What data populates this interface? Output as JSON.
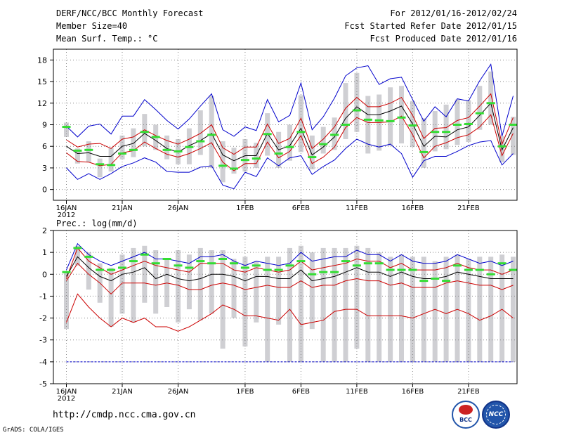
{
  "header": {
    "title": "DERF/NCC/BCC Monthly Forecast",
    "member_size": "Member Size=40",
    "variable": "Mean Surf. Temp.: °C",
    "forecast_period": "For 2012/01/16-2012/02/24",
    "started_date": "Fcst Started Refer Date 2012/01/15",
    "produced_date": "Fcst Produced Date 2012/01/16"
  },
  "footer": {
    "url": "http://cmdp.ncc.cma.gov.cn",
    "credit": "GrADS: COLA/IGES",
    "logo_left": "BCC",
    "logo_right": "NCC"
  },
  "colors": {
    "max_min": "#0000cc",
    "spread": "#cc0000",
    "mean": "#000000",
    "box": "#cfcfd3",
    "obs": "#33dd33",
    "grid": "#888888"
  },
  "chart_data": [
    {
      "name": "temperature",
      "type": "line",
      "title": "Mean Surf. Temp.: °C",
      "ylim": [
        -1.5,
        19.5
      ],
      "yticks": [
        0,
        3,
        6,
        9,
        12,
        15,
        18
      ],
      "xticks": [
        {
          "day": 0,
          "label": "16JAN",
          "sub": "2012"
        },
        {
          "day": 5,
          "label": "21JAN"
        },
        {
          "day": 10,
          "label": "26JAN"
        },
        {
          "day": 16,
          "label": "1FEB"
        },
        {
          "day": 21,
          "label": "6FEB"
        },
        {
          "day": 26,
          "label": "11FEB"
        },
        {
          "day": 31,
          "label": "16FEB"
        },
        {
          "day": 36,
          "label": "21FEB"
        }
      ],
      "series": [
        {
          "name": "max",
          "role": "max",
          "values": [
            8.8,
            7.3,
            8.8,
            9.1,
            7.7,
            10.2,
            10.2,
            12.5,
            11.1,
            9.6,
            8.4,
            9.8,
            11.6,
            13.3,
            8.3,
            7.4,
            8.7,
            8.2,
            12.5,
            9.4,
            10.3,
            14.8,
            8.3,
            10.1,
            12.7,
            15.8,
            16.9,
            17.2,
            14.6,
            15.4,
            15.6,
            12.5,
            9.5,
            11.5,
            10.1,
            12.6,
            12.3,
            15.1,
            17.4,
            7.4,
            13.0
          ]
        },
        {
          "name": "upper",
          "role": "spread",
          "values": [
            6.9,
            5.9,
            6.3,
            6.4,
            5.7,
            7.0,
            7.3,
            8.3,
            7.5,
            6.8,
            6.3,
            7.0,
            7.8,
            9.0,
            5.8,
            4.9,
            5.9,
            5.9,
            9.1,
            6.4,
            7.1,
            9.9,
            5.7,
            7.0,
            8.7,
            11.3,
            12.8,
            11.5,
            11.5,
            12.0,
            12.8,
            10.3,
            7.1,
            8.5,
            8.6,
            9.6,
            10.0,
            11.6,
            13.3,
            6.3,
            10.0
          ]
        },
        {
          "name": "mean",
          "role": "mean",
          "values": [
            6.0,
            5.0,
            5.1,
            4.6,
            4.6,
            6.0,
            6.4,
            7.8,
            6.8,
            5.7,
            5.2,
            6.1,
            6.8,
            7.8,
            4.8,
            4.0,
            4.7,
            4.7,
            7.8,
            5.5,
            6.1,
            8.5,
            4.8,
            5.9,
            7.3,
            9.9,
            11.5,
            10.4,
            10.4,
            10.9,
            11.6,
            9.1,
            6.0,
            7.4,
            7.3,
            8.3,
            8.7,
            10.3,
            12.0,
            5.5,
            8.6
          ]
        },
        {
          "name": "lower",
          "role": "spread",
          "values": [
            5.1,
            3.9,
            3.8,
            3.3,
            3.5,
            5.1,
            5.4,
            6.6,
            5.7,
            4.9,
            4.5,
            5.0,
            5.7,
            6.5,
            3.8,
            2.6,
            3.6,
            3.6,
            6.6,
            4.4,
            5.3,
            7.5,
            3.6,
            4.5,
            5.9,
            8.6,
            10.0,
            9.3,
            9.3,
            9.4,
            10.2,
            7.6,
            4.4,
            6.0,
            6.5,
            7.2,
            7.6,
            8.7,
            10.4,
            4.7,
            7.8
          ]
        },
        {
          "name": "min",
          "role": "min",
          "values": [
            3.0,
            1.4,
            2.2,
            1.4,
            2.2,
            3.2,
            3.7,
            4.4,
            3.8,
            2.5,
            2.4,
            2.4,
            3.1,
            3.3,
            0.6,
            0.1,
            2.4,
            1.8,
            4.4,
            3.3,
            4.4,
            4.7,
            2.1,
            3.2,
            4.1,
            5.7,
            7.0,
            6.3,
            5.9,
            6.3,
            5.0,
            1.7,
            4.0,
            4.6,
            4.6,
            5.3,
            6.1,
            6.6,
            6.8,
            3.4,
            5.0
          ]
        }
      ],
      "boxes": [
        {
          "lo": 7.3,
          "hi": 9.3
        },
        {
          "lo": 3.6,
          "hi": 5.7
        },
        {
          "lo": 3.8,
          "hi": 6.7
        },
        {
          "lo": 1.7,
          "hi": 4.3
        },
        {
          "lo": 2.5,
          "hi": 5.8
        },
        {
          "lo": 4.2,
          "hi": 7.5
        },
        {
          "lo": 4.5,
          "hi": 8.5
        },
        {
          "lo": 6.0,
          "hi": 10.5
        },
        {
          "lo": 5.5,
          "hi": 9.0
        },
        {
          "lo": 4.2,
          "hi": 7.5
        },
        {
          "lo": 3.5,
          "hi": 7.0
        },
        {
          "lo": 3.5,
          "hi": 8.5
        },
        {
          "lo": 4.8,
          "hi": 11.0
        },
        {
          "lo": 3.0,
          "hi": 13.0
        },
        {
          "lo": 1.0,
          "hi": 6.7
        },
        {
          "lo": 2.2,
          "hi": 5.8
        },
        {
          "lo": 2.5,
          "hi": 7.0
        },
        {
          "lo": 3.0,
          "hi": 6.5
        },
        {
          "lo": 4.7,
          "hi": 10.6
        },
        {
          "lo": 3.0,
          "hi": 8.0
        },
        {
          "lo": 4.0,
          "hi": 9.0
        },
        {
          "lo": 5.2,
          "hi": 13.1
        },
        {
          "lo": 2.8,
          "hi": 7.5
        },
        {
          "lo": 5.0,
          "hi": 8.7
        },
        {
          "lo": 5.5,
          "hi": 10.0
        },
        {
          "lo": 7.0,
          "hi": 14.8
        },
        {
          "lo": 8.0,
          "hi": 16.2
        },
        {
          "lo": 5.0,
          "hi": 13.0
        },
        {
          "lo": 5.4,
          "hi": 13.2
        },
        {
          "lo": 6.1,
          "hi": 14.2
        },
        {
          "lo": 6.4,
          "hi": 14.4
        },
        {
          "lo": 5.9,
          "hi": 12.3
        },
        {
          "lo": 3.0,
          "hi": 9.9
        },
        {
          "lo": 5.3,
          "hi": 10.9
        },
        {
          "lo": 5.6,
          "hi": 11.8
        },
        {
          "lo": 6.2,
          "hi": 12.5
        },
        {
          "lo": 6.6,
          "hi": 12.4
        },
        {
          "lo": 8.3,
          "hi": 14.4
        },
        {
          "lo": 9.0,
          "hi": 16.4
        },
        {
          "lo": 3.8,
          "hi": 7.4
        },
        {
          "lo": 4.8,
          "hi": 10.1
        }
      ],
      "obs": [
        8.7,
        5.4,
        5.5,
        3.5,
        3.4,
        5.0,
        5.5,
        8.0,
        7.3,
        5.5,
        5.3,
        5.9,
        6.7,
        7.6,
        3.3,
        2.9,
        4.1,
        4.3,
        7.7,
        5.0,
        5.9,
        8.0,
        4.5,
        6.3,
        7.6,
        9.0,
        11.0,
        9.7,
        9.6,
        9.5,
        10.0,
        8.9,
        5.2,
        8.0,
        8.0,
        9.0,
        9.1,
        10.6,
        12.0,
        6.0,
        9.0
      ]
    },
    {
      "name": "precipitation",
      "type": "line",
      "title": "Prec.: log(mm/d)",
      "ylim": [
        -5,
        2
      ],
      "yticks": [
        -5,
        -4,
        -3,
        -2,
        -1,
        0,
        1,
        2
      ],
      "xticks": [
        {
          "day": 0,
          "label": "16JAN",
          "sub": "2012"
        },
        {
          "day": 5,
          "label": "21JAN"
        },
        {
          "day": 10,
          "label": "26JAN"
        },
        {
          "day": 16,
          "label": "1FEB"
        },
        {
          "day": 21,
          "label": "6FEB"
        },
        {
          "day": 26,
          "label": "11FEB"
        },
        {
          "day": 31,
          "label": "16FEB"
        },
        {
          "day": 36,
          "label": "21FEB"
        }
      ],
      "series": [
        {
          "name": "max",
          "role": "max",
          "values": [
            0.2,
            1.4,
            0.9,
            0.6,
            0.4,
            0.6,
            0.8,
            1.0,
            0.7,
            0.7,
            0.6,
            0.5,
            0.8,
            0.8,
            0.9,
            0.6,
            0.4,
            0.6,
            0.5,
            0.4,
            0.5,
            1.0,
            0.6,
            0.7,
            0.8,
            0.8,
            1.1,
            0.9,
            0.9,
            0.6,
            0.9,
            0.6,
            0.5,
            0.5,
            0.6,
            0.9,
            0.7,
            0.5,
            0.6,
            0.4,
            0.6
          ]
        },
        {
          "name": "upper",
          "role": "spread",
          "values": [
            -0.2,
            1.2,
            0.6,
            0.3,
            0.0,
            0.2,
            0.4,
            0.6,
            0.4,
            0.3,
            0.2,
            0.1,
            0.5,
            0.5,
            0.5,
            0.2,
            0.1,
            0.3,
            0.2,
            0.1,
            0.2,
            0.6,
            0.2,
            0.3,
            0.4,
            0.5,
            0.7,
            0.6,
            0.6,
            0.3,
            0.5,
            0.2,
            0.2,
            0.2,
            0.3,
            0.5,
            0.3,
            0.2,
            0.2,
            0.0,
            0.2
          ]
        },
        {
          "name": "mean",
          "role": "mean",
          "values": [
            -0.1,
            0.8,
            0.3,
            -0.1,
            -0.3,
            0.0,
            0.1,
            0.3,
            -0.2,
            0.0,
            -0.2,
            -0.3,
            -0.2,
            0.0,
            0.0,
            -0.1,
            -0.3,
            -0.1,
            -0.1,
            -0.2,
            -0.2,
            0.2,
            -0.3,
            -0.2,
            -0.1,
            0.1,
            0.3,
            0.1,
            0.1,
            -0.1,
            0.1,
            -0.1,
            -0.2,
            -0.2,
            -0.1,
            0.1,
            0.0,
            -0.1,
            -0.2,
            -0.2,
            -0.2
          ]
        },
        {
          "name": "lower",
          "role": "spread",
          "values": [
            -0.3,
            0.5,
            0.0,
            -0.4,
            -0.9,
            -0.4,
            -0.4,
            -0.4,
            -0.5,
            -0.4,
            -0.5,
            -0.7,
            -0.7,
            -0.5,
            -0.4,
            -0.5,
            -0.7,
            -0.6,
            -0.5,
            -0.6,
            -0.6,
            -0.3,
            -0.6,
            -0.5,
            -0.5,
            -0.3,
            -0.2,
            -0.3,
            -0.3,
            -0.5,
            -0.4,
            -0.6,
            -0.6,
            -0.6,
            -0.4,
            -0.3,
            -0.4,
            -0.5,
            -0.5,
            -0.7,
            -0.5
          ]
        },
        {
          "name": "bottom",
          "role": "spread",
          "values": [
            -2.2,
            -0.9,
            -1.5,
            -2.0,
            -2.4,
            -2.0,
            -2.2,
            -2.0,
            -2.4,
            -2.4,
            -2.6,
            -2.4,
            -2.1,
            -1.8,
            -1.4,
            -1.6,
            -1.9,
            -1.9,
            -2.0,
            -2.1,
            -1.6,
            -2.3,
            -2.2,
            -2.1,
            -1.7,
            -1.6,
            -1.6,
            -1.9,
            -1.9,
            -1.9,
            -1.9,
            -2.0,
            -1.8,
            -1.6,
            -1.8,
            -1.6,
            -1.8,
            -2.1,
            -1.9,
            -1.6,
            -2.0
          ]
        },
        {
          "name": "floor",
          "role": "min",
          "values": [
            -4,
            -4,
            -4,
            -4,
            -4,
            -4,
            -4,
            -4,
            -4,
            -4,
            -4,
            -4,
            -4,
            -4,
            -4,
            -4,
            -4,
            -4,
            -4,
            -4,
            -4,
            -4,
            -4,
            -4,
            -4,
            -4,
            -4,
            -4,
            -4,
            -4,
            -4,
            -4,
            -4,
            -4,
            -4,
            -4,
            -4,
            -4,
            -4,
            -4,
            -4
          ]
        }
      ],
      "boxes": [
        {
          "lo": -2.5,
          "hi": 0.1
        },
        {
          "lo": 0.4,
          "hi": 1.3
        },
        {
          "lo": -0.7,
          "hi": 1.0
        },
        {
          "lo": -1.3,
          "hi": 0.5
        },
        {
          "lo": -2.4,
          "hi": 0.3
        },
        {
          "lo": -1.8,
          "hi": 0.9
        },
        {
          "lo": -2.2,
          "hi": 1.2
        },
        {
          "lo": -1.3,
          "hi": 1.3
        },
        {
          "lo": -1.8,
          "hi": 1.1
        },
        {
          "lo": -1.5,
          "hi": 0.7
        },
        {
          "lo": -2.2,
          "hi": 1.1
        },
        {
          "lo": -1.6,
          "hi": 0.9
        },
        {
          "lo": -2.1,
          "hi": 1.2
        },
        {
          "lo": -1.8,
          "hi": 1.1
        },
        {
          "lo": -3.4,
          "hi": 1.1
        },
        {
          "lo": -2.0,
          "hi": 0.7
        },
        {
          "lo": -3.3,
          "hi": 0.8
        },
        {
          "lo": -2.2,
          "hi": 0.6
        },
        {
          "lo": -4.0,
          "hi": 0.8
        },
        {
          "lo": -2.3,
          "hi": 0.8
        },
        {
          "lo": -4.0,
          "hi": 1.2
        },
        {
          "lo": -4.0,
          "hi": 1.3
        },
        {
          "lo": -2.5,
          "hi": 1.0
        },
        {
          "lo": -4.0,
          "hi": 1.2
        },
        {
          "lo": -4.0,
          "hi": 1.2
        },
        {
          "lo": -4.0,
          "hi": 1.2
        },
        {
          "lo": -3.4,
          "hi": 1.3
        },
        {
          "lo": -4.0,
          "hi": 1.2
        },
        {
          "lo": -4.0,
          "hi": 1.0
        },
        {
          "lo": -4.0,
          "hi": 0.8
        },
        {
          "lo": -4.0,
          "hi": 0.9
        },
        {
          "lo": -4.0,
          "hi": 0.8
        },
        {
          "lo": -4.0,
          "hi": 0.8
        },
        {
          "lo": -4.0,
          "hi": 0.6
        },
        {
          "lo": -4.0,
          "hi": 0.8
        },
        {
          "lo": -4.0,
          "hi": 0.9
        },
        {
          "lo": -4.0,
          "hi": 0.7
        },
        {
          "lo": -4.0,
          "hi": 0.8
        },
        {
          "lo": -4.0,
          "hi": 0.8
        },
        {
          "lo": -4.0,
          "hi": 0.9
        },
        {
          "lo": -4.0,
          "hi": 0.8
        }
      ],
      "obs": [
        0.1,
        1.2,
        0.8,
        0.2,
        0.2,
        0.3,
        0.6,
        0.9,
        0.5,
        0.7,
        0.4,
        0.3,
        0.6,
        0.5,
        0.7,
        0.5,
        0.3,
        0.4,
        0.2,
        0.2,
        0.4,
        0.6,
        0.0,
        0.1,
        0.1,
        0.6,
        0.4,
        0.5,
        0.5,
        0.2,
        0.2,
        0.2,
        -0.3,
        -0.2,
        -0.3,
        0.4,
        0.2,
        0.2,
        0.0,
        0.5,
        0.2
      ]
    }
  ]
}
